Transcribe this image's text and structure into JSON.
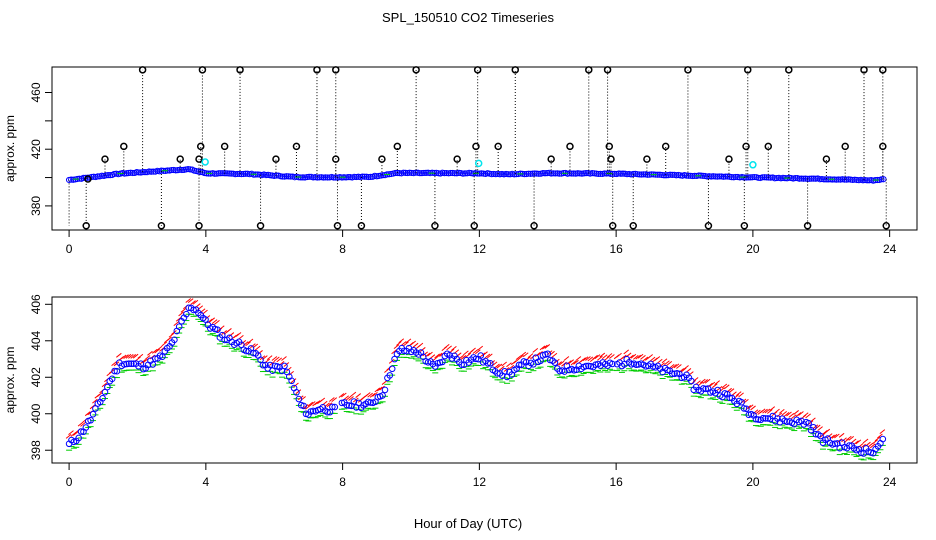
{
  "figure": {
    "title": "SPL_150510  CO2 Timeseries",
    "xlabel": "Hour of Day (UTC)"
  },
  "colors": {
    "blue": "#0000ff",
    "green": "#00cc00",
    "red": "#ff0000",
    "cyan": "#00e5ee",
    "black": "#000000"
  },
  "chart_data": [
    {
      "type": "scatter",
      "name": "top-panel",
      "ylabel": "approx. ppm",
      "xlim": [
        -0.5,
        24.8
      ],
      "ylim": [
        363,
        478
      ],
      "xticks": [
        0,
        4,
        8,
        12,
        16,
        20,
        24
      ],
      "yticks": [
        380,
        420,
        460
      ],
      "yticks_minor": [
        360,
        400,
        440
      ],
      "baseline_anchors": [
        [
          0,
          398.3
        ],
        [
          1.5,
          402.8
        ],
        [
          3.5,
          405.9
        ],
        [
          4,
          403
        ],
        [
          5.3,
          402.5
        ],
        [
          6.6,
          400.4
        ],
        [
          7.7,
          400.2
        ],
        [
          8.8,
          400.5
        ],
        [
          9.6,
          403.2
        ],
        [
          12,
          403
        ],
        [
          12.8,
          402.3
        ],
        [
          14,
          403.1
        ],
        [
          16,
          402.7
        ],
        [
          18,
          401.5
        ],
        [
          20,
          400.1
        ],
        [
          21.5,
          399.4
        ],
        [
          23.5,
          398
        ],
        [
          23.8,
          398.7
        ]
      ],
      "spikes_high": [
        2.15,
        3.9,
        5.0,
        7.25,
        7.8,
        10.15,
        11.95,
        13.05,
        15.2,
        15.75,
        18.1,
        19.85,
        21.05,
        23.25,
        23.8
      ],
      "spikes_mid": [
        0.55,
        1.05,
        1.6,
        3.25,
        3.8,
        3.85,
        4.55,
        6.05,
        6.65,
        7.8,
        9.15,
        9.6,
        11.35,
        11.9,
        12.55,
        14.1,
        14.65,
        15.8,
        15.85,
        16.9,
        17.45,
        19.3,
        19.8,
        20.45,
        22.15,
        22.7,
        23.8
      ],
      "spikes_mid_values": [
        399,
        413,
        422,
        413,
        413,
        422,
        422,
        413,
        422,
        413,
        413,
        422,
        413,
        422,
        422,
        413,
        422,
        422,
        413,
        413,
        422,
        413,
        422,
        422,
        413,
        422,
        422
      ],
      "spikes_low": [
        0.5,
        2.7,
        3.8,
        5.6,
        7.85,
        8.55,
        10.7,
        11.85,
        13.6,
        15.9,
        16.5,
        18.7,
        19.75,
        21.6,
        23.9
      ],
      "spikes_low_value": 366,
      "cyan_points": [
        [
          3.98,
          411
        ],
        [
          11.98,
          410
        ],
        [
          20.0,
          409
        ]
      ]
    },
    {
      "type": "scatter",
      "name": "bottom-panel",
      "ylabel": "approx. ppm",
      "xlim": [
        -0.5,
        24.8
      ],
      "ylim": [
        397.3,
        406.4
      ],
      "xticks": [
        0,
        4,
        8,
        12,
        16,
        20,
        24
      ],
      "yticks": [
        398,
        400,
        402,
        404,
        406
      ],
      "series": [
        {
          "name": "blue",
          "marker": "circle",
          "offset": 0
        },
        {
          "name": "green",
          "marker": "dash",
          "offset": -0.4
        },
        {
          "name": "red",
          "marker": "tick",
          "offset": 0.4
        }
      ],
      "anchors": [
        [
          0,
          398.3
        ],
        [
          0.3,
          398.8
        ],
        [
          0.6,
          399.6
        ],
        [
          0.9,
          400.6
        ],
        [
          1.2,
          401.8
        ],
        [
          1.5,
          402.8
        ],
        [
          2.2,
          402.6
        ],
        [
          2.7,
          403.1
        ],
        [
          3.0,
          403.8
        ],
        [
          3.3,
          405.0
        ],
        [
          3.55,
          405.9
        ],
        [
          3.8,
          405.6
        ],
        [
          4.0,
          405.0
        ],
        [
          4.5,
          404.2
        ],
        [
          5.0,
          403.8
        ],
        [
          5.5,
          403.2
        ],
        [
          5.8,
          402.5
        ],
        [
          6.3,
          402.5
        ],
        [
          6.5,
          401.8
        ],
        [
          6.8,
          400.4
        ],
        [
          7.0,
          400.0
        ],
        [
          7.3,
          400.3
        ],
        [
          7.75,
          400.2
        ],
        [
          8.0,
          400.5
        ],
        [
          8.8,
          400.5
        ],
        [
          9.2,
          401.2
        ],
        [
          9.5,
          402.9
        ],
        [
          9.7,
          403.5
        ],
        [
          10.2,
          403.4
        ],
        [
          10.7,
          402.5
        ],
        [
          11.1,
          403.3
        ],
        [
          11.5,
          402.8
        ],
        [
          12.0,
          403.1
        ],
        [
          12.4,
          402.5
        ],
        [
          12.8,
          402.1
        ],
        [
          13.3,
          402.7
        ],
        [
          13.8,
          403.0
        ],
        [
          14.0,
          403.2
        ],
        [
          14.3,
          402.4
        ],
        [
          15.0,
          402.6
        ],
        [
          16.0,
          402.7
        ],
        [
          16.5,
          402.9
        ],
        [
          17.0,
          402.6
        ],
        [
          17.5,
          402.3
        ],
        [
          18.0,
          402.1
        ],
        [
          18.3,
          401.4
        ],
        [
          19.0,
          401.2
        ],
        [
          19.6,
          400.6
        ],
        [
          20.0,
          399.9
        ],
        [
          21.0,
          399.6
        ],
        [
          21.6,
          399.5
        ],
        [
          22.0,
          398.6
        ],
        [
          22.5,
          398.3
        ],
        [
          23.2,
          398.0
        ],
        [
          23.6,
          397.9
        ],
        [
          23.75,
          398.6
        ],
        [
          23.85,
          398.9
        ]
      ]
    }
  ]
}
